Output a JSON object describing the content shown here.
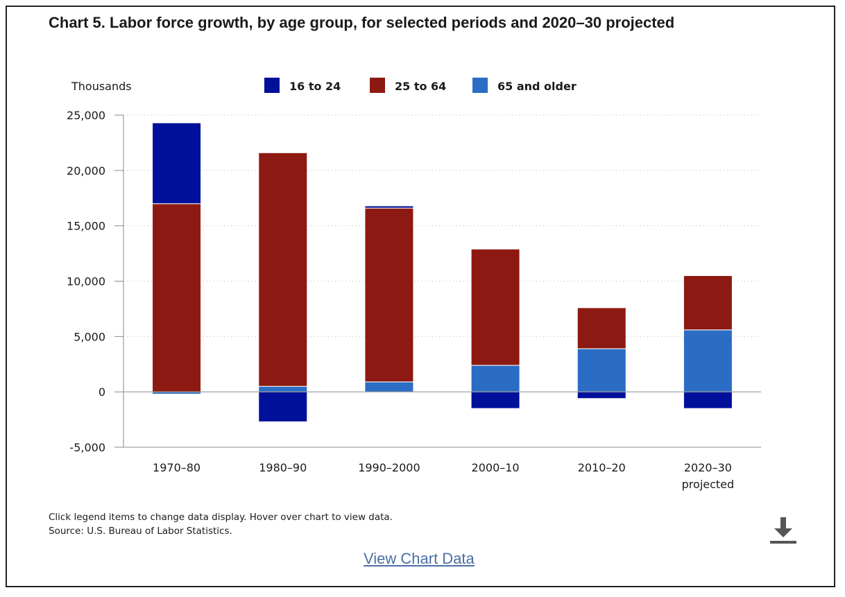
{
  "title": "Chart 5. Labor force growth, by age group, for selected periods and 2020–30 projected",
  "footer": {
    "note": "Click legend items to change data display. Hover over chart to view data.",
    "source": "Source: U.S. Bureau of Labor Statistics.",
    "link": "View Chart Data",
    "download_icon": "download-icon"
  },
  "chart_data": {
    "type": "bar",
    "stacked": true,
    "ylabel": "Thousands",
    "ylim": [
      -5000,
      25000
    ],
    "yticks": [
      25000,
      20000,
      15000,
      10000,
      5000,
      0,
      -5000
    ],
    "ytick_labels": [
      "25,000",
      "20,000",
      "15,000",
      "10,000",
      "5,000",
      "0",
      "-5,000"
    ],
    "grid": true,
    "legend_position": "top",
    "categories": [
      [
        "1970–80"
      ],
      [
        "1980–90"
      ],
      [
        "1990–2000"
      ],
      [
        "2000–10"
      ],
      [
        "2010–20"
      ],
      [
        "2020–30",
        "projected"
      ]
    ],
    "series": [
      {
        "name": "16 to 24",
        "color": "#00109b",
        "values": [
          7300,
          -2700,
          200,
          -1500,
          -600,
          -1500
        ]
      },
      {
        "name": "25 to 64",
        "color": "#8c1a12",
        "values": [
          17000,
          21100,
          15700,
          10500,
          3700,
          4900
        ]
      },
      {
        "name": "65 and older",
        "color": "#2b6cc4",
        "values": [
          -200,
          500,
          900,
          2400,
          3900,
          5600
        ]
      }
    ]
  }
}
